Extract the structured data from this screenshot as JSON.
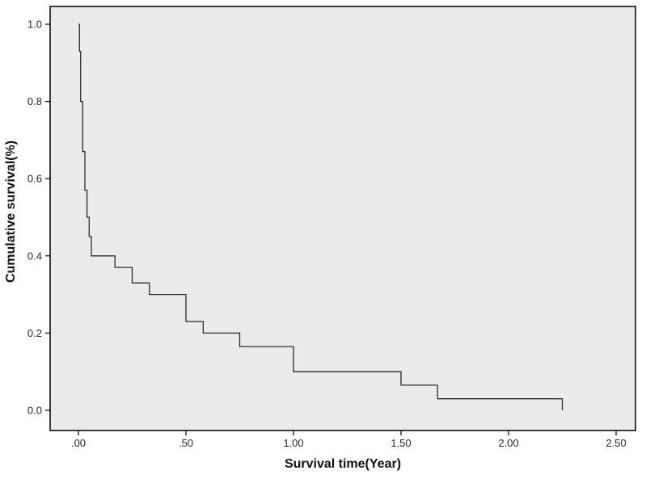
{
  "chart_data": {
    "type": "line",
    "subtype": "kaplan-meier-step",
    "title": "",
    "xlabel": "Survival time(Year)",
    "ylabel": "Cumulative survival(%)",
    "xlim": [
      -0.13,
      2.59
    ],
    "ylim": [
      -0.05,
      1.05
    ],
    "x_ticks": [
      ".00",
      ".50",
      "1.00",
      "1.50",
      "2.00",
      "2.50"
    ],
    "x_tick_values": [
      0,
      0.5,
      1.0,
      1.5,
      2.0,
      2.5
    ],
    "y_ticks": [
      "0.0",
      "0.2",
      "0.4",
      "0.6",
      "0.8",
      "1.0"
    ],
    "y_tick_values": [
      0,
      0.2,
      0.4,
      0.6,
      0.8,
      1.0
    ],
    "grid": false,
    "legend": "none",
    "plot_bg_color": "#ebebeb",
    "frame_color": "#000000",
    "line_color": "#2b2b2b",
    "series": [
      {
        "name": "Cumulative survival",
        "points": [
          {
            "time": 0.0,
            "survival": 1.0
          },
          {
            "time": 0.005,
            "survival": 0.93
          },
          {
            "time": 0.01,
            "survival": 0.8
          },
          {
            "time": 0.02,
            "survival": 0.67
          },
          {
            "time": 0.03,
            "survival": 0.57
          },
          {
            "time": 0.04,
            "survival": 0.5
          },
          {
            "time": 0.05,
            "survival": 0.45
          },
          {
            "time": 0.06,
            "survival": 0.4
          },
          {
            "time": 0.17,
            "survival": 0.37
          },
          {
            "time": 0.25,
            "survival": 0.33
          },
          {
            "time": 0.33,
            "survival": 0.3
          },
          {
            "time": 0.5,
            "survival": 0.23
          },
          {
            "time": 0.58,
            "survival": 0.2
          },
          {
            "time": 0.75,
            "survival": 0.165
          },
          {
            "time": 1.0,
            "survival": 0.1
          },
          {
            "time": 1.5,
            "survival": 0.065
          },
          {
            "time": 1.67,
            "survival": 0.03
          },
          {
            "time": 2.25,
            "survival": 0.0
          }
        ]
      }
    ]
  }
}
